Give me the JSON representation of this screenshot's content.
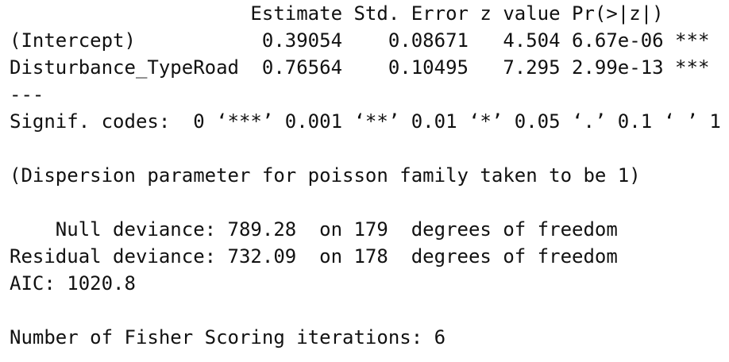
{
  "console": {
    "blocks": [
      [
        "                     Estimate Std. Error z value Pr(>|z|)",
        "(Intercept)           0.39054    0.08671   4.504 6.67e-06 ***",
        "Disturbance_TypeRoad  0.76564    0.10495   7.295 2.99e-13 ***",
        "---",
        "Signif. codes:  0 ‘***’ 0.001 ‘**’ 0.01 ‘*’ 0.05 ‘.’ 0.1 ‘ ’ 1"
      ],
      [
        "(Dispersion parameter for poisson family taken to be 1)"
      ],
      [
        "    Null deviance: 789.28  on 179  degrees of freedom",
        "Residual deviance: 732.09  on 178  degrees of freedom",
        "AIC: 1020.8"
      ],
      [
        "Number of Fisher Scoring iterations: 6"
      ]
    ]
  }
}
